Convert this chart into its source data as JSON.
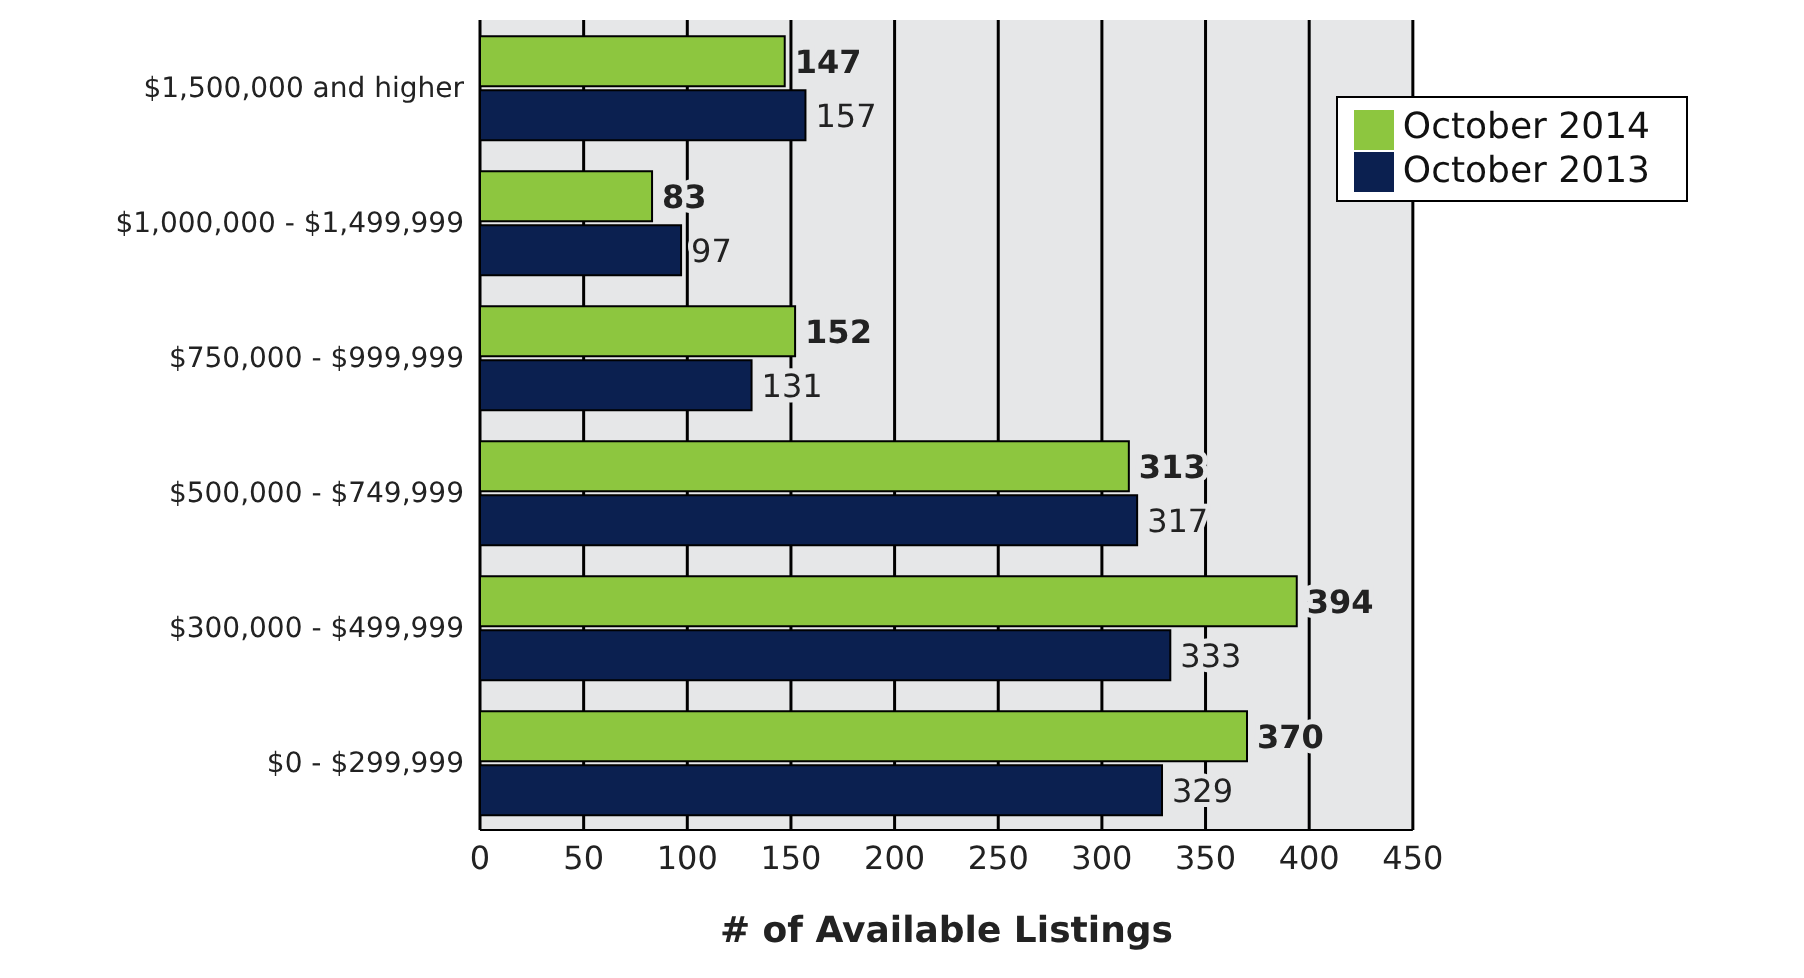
{
  "chart_data": {
    "type": "bar",
    "orientation": "horizontal",
    "xlabel": "# of Available Listings",
    "categories": [
      "$1,500,000 and higher",
      "$1,000,000 - $1,499,999",
      "$750,000 - $999,999",
      "$500,000 - $749,999",
      "$300,000 - $499,999",
      "$0 - $299,999"
    ],
    "series": [
      {
        "name": "October 2014",
        "color": "#8dc63f",
        "values": [
          147,
          83,
          152,
          313,
          394,
          370
        ]
      },
      {
        "name": "October 2013",
        "color": "#0b2050",
        "values": [
          157,
          97,
          131,
          317,
          333,
          329
        ]
      }
    ],
    "xlim": [
      0,
      450
    ],
    "xticks": [
      0,
      50,
      100,
      150,
      200,
      250,
      300,
      350,
      400,
      450
    ],
    "grid": "x",
    "legend": "top right",
    "data_labels": true
  }
}
